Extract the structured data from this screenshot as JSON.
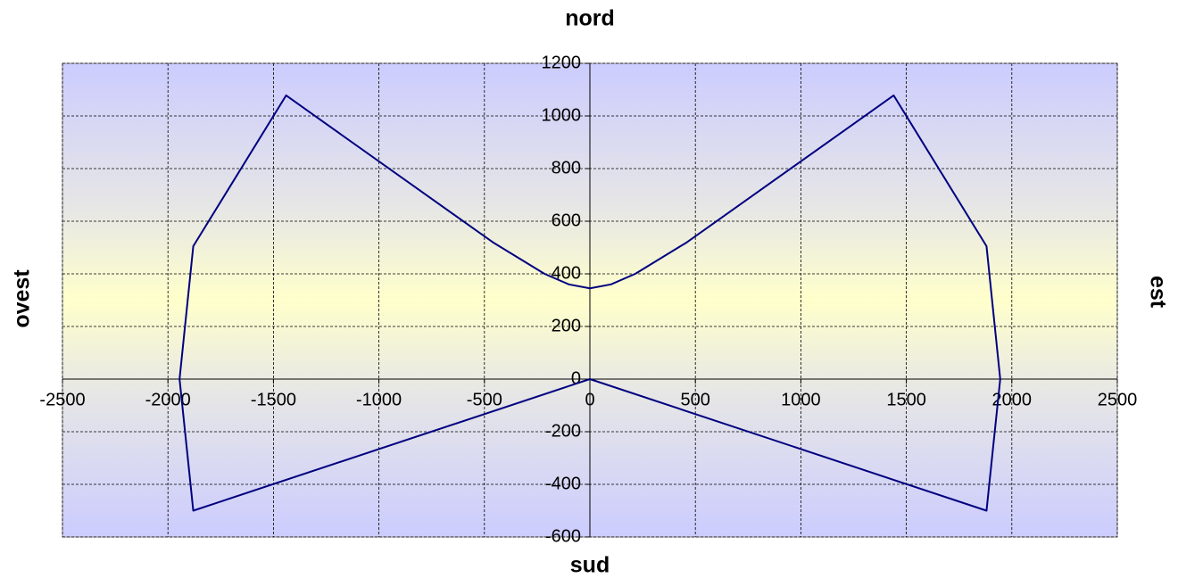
{
  "chart_data": {
    "type": "line",
    "title": "nord",
    "xlabel_bottom": "sud",
    "ylabel_left": "ovest",
    "ylabel_right": "est",
    "x": [
      0,
      1880,
      1945,
      1880,
      1440,
      460,
      215,
      100,
      0,
      -100,
      -215,
      -460,
      -1440,
      -1880,
      -1945,
      -1880,
      0
    ],
    "series": [
      {
        "color": "#000080",
        "values": [
          0,
          -500,
          0,
          505,
          1078,
          520,
          400,
          360,
          345,
          360,
          400,
          520,
          1078,
          505,
          0,
          -500,
          0
        ]
      }
    ],
    "xlim": [
      -2500,
      2500
    ],
    "xticks": [
      -2500,
      -2000,
      -1500,
      -1000,
      -500,
      0,
      500,
      1000,
      1500,
      2000,
      2500
    ],
    "ylim": [
      -600,
      1200
    ],
    "yticks": [
      -600,
      -400,
      -200,
      0,
      200,
      400,
      600,
      800,
      1000,
      1200
    ],
    "grid": true
  }
}
